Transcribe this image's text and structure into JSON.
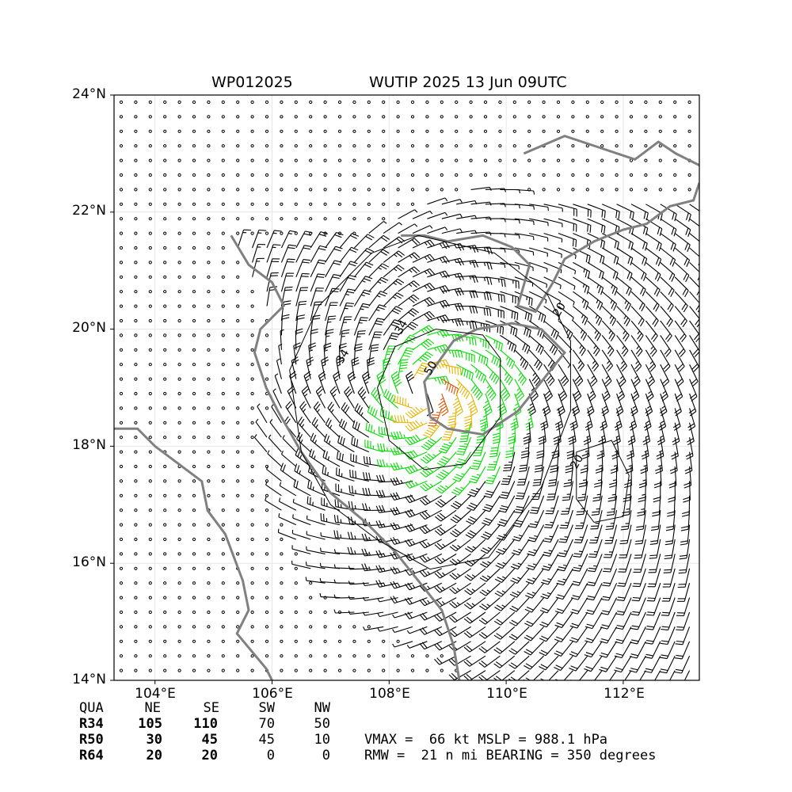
{
  "title": {
    "storm_id": "WP012025",
    "main": "WUTIP 2025 13 Jun 09UTC"
  },
  "map": {
    "lat_labels": [
      "24°N",
      "22°N",
      "20°N",
      "18°N",
      "16°N",
      "14°N"
    ],
    "lon_labels": [
      "104°E",
      "106°E",
      "108°E",
      "110°E",
      "112°E"
    ],
    "contour_labels": [
      "20",
      "34",
      "34",
      "50",
      "20"
    ],
    "colors": {
      "barb_default": "#000000",
      "barb_34kt": "#00dd00",
      "barb_50kt": "#e8b400",
      "barb_64kt": "#e05000",
      "coastline": "#808080",
      "contour": "#000000"
    }
  },
  "table": {
    "headers": [
      "QUA",
      "NE",
      "SE",
      "SW",
      "NW"
    ],
    "rows": [
      {
        "label": "R34",
        "values": [
          "105",
          "110",
          "70",
          "50"
        ]
      },
      {
        "label": "R50",
        "values": [
          "30",
          "45",
          "45",
          "10"
        ]
      },
      {
        "label": "R64",
        "values": [
          "20",
          "20",
          "0",
          "0"
        ]
      }
    ]
  },
  "stats": {
    "line1": "VMAX =  66 kt MSLP = 988.1 hPa",
    "line2": "RMW =  21 n mi BEARING = 350 degrees"
  },
  "storm": {
    "vmax_kt": 66,
    "mslp_hpa": 988.1,
    "rmw_nmi": 21,
    "bearing_deg": 350,
    "center_lon": 108.6,
    "center_lat": 18.9
  }
}
